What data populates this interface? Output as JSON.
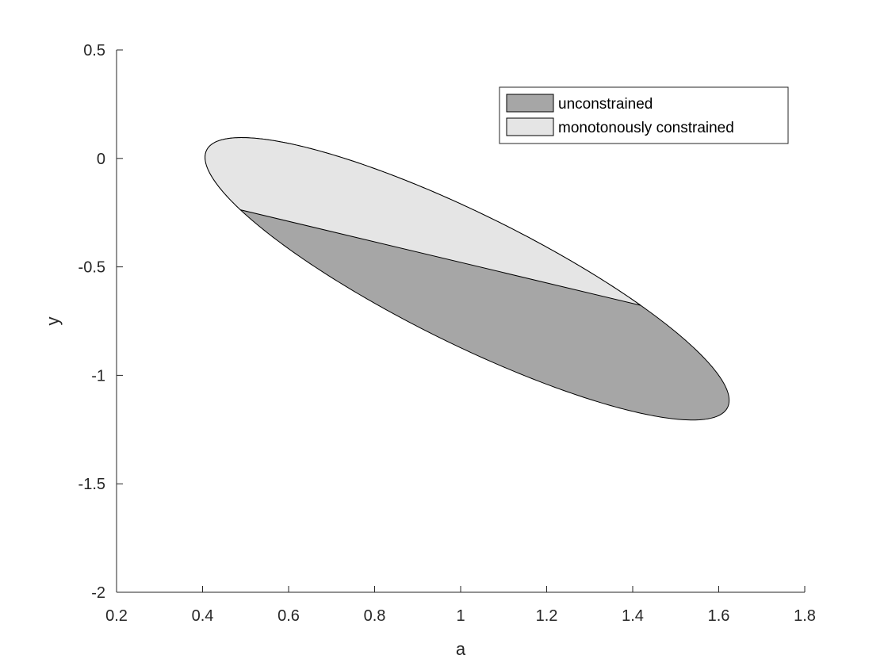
{
  "chart_data": {
    "type": "area",
    "xlabel": "a",
    "ylabel": "y",
    "xlim": [
      0.2,
      1.8
    ],
    "ylim": [
      -2,
      0.5
    ],
    "x_ticks": [
      0.2,
      0.4,
      0.6,
      0.8,
      1,
      1.2,
      1.4,
      1.6,
      1.8
    ],
    "y_ticks": [
      -2,
      -1.5,
      -1,
      -0.5,
      0,
      0.5
    ],
    "x_tick_labels": [
      "0.2",
      "0.4",
      "0.6",
      "0.8",
      "1",
      "1.2",
      "1.4",
      "1.6",
      "1.8"
    ],
    "y_tick_labels": [
      "-2",
      "-1.5",
      "-1",
      "-0.5",
      "0",
      "0.5"
    ],
    "ellipse": {
      "center": [
        1.015,
        -0.555
      ],
      "semi_major": 0.86,
      "semi_minor": 0.235,
      "angle_deg": -47.2
    },
    "series": [
      {
        "name": "unconstrained",
        "color": "#a6a6a6",
        "description": "full confidence ellipse"
      },
      {
        "name": "monotonously constrained",
        "color": "#e5e5e5",
        "chord": [
          [
            0.435,
            -0.205
          ],
          [
            1.51,
            -0.705
          ]
        ]
      }
    ],
    "legend_position": "top-right",
    "grid": false
  }
}
